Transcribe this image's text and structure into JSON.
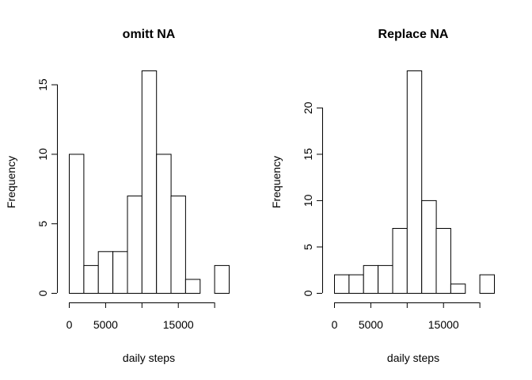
{
  "chart_data": [
    {
      "type": "bar",
      "title": "omitt NA",
      "xlabel": "daily steps",
      "ylabel": "Frequency",
      "bin_edges": [
        0,
        2000,
        4000,
        6000,
        8000,
        10000,
        12000,
        14000,
        16000,
        18000,
        20000,
        22000
      ],
      "values": [
        10,
        2,
        3,
        3,
        7,
        16,
        10,
        7,
        1,
        0,
        2
      ],
      "xlim": [
        0,
        22000
      ],
      "ylim": [
        0,
        16
      ],
      "x_ticks": [
        0,
        5000,
        10000,
        15000,
        20000
      ],
      "x_tick_labels": [
        "0",
        "5000",
        "",
        "15000",
        ""
      ],
      "y_ticks": [
        0,
        5,
        10,
        15
      ],
      "y_tick_labels": [
        "0",
        "5",
        "10",
        "15"
      ],
      "grid": false
    },
    {
      "type": "bar",
      "title": "Replace NA",
      "xlabel": "daily steps",
      "ylabel": "Frequency",
      "bin_edges": [
        0,
        2000,
        4000,
        6000,
        8000,
        10000,
        12000,
        14000,
        16000,
        18000,
        20000,
        22000
      ],
      "values": [
        2,
        2,
        3,
        3,
        7,
        24,
        10,
        7,
        1,
        0,
        2
      ],
      "xlim": [
        0,
        22000
      ],
      "ylim": [
        0,
        24
      ],
      "x_ticks": [
        0,
        5000,
        10000,
        15000,
        20000
      ],
      "x_tick_labels": [
        "0",
        "5000",
        "",
        "15000",
        ""
      ],
      "y_ticks": [
        0,
        5,
        10,
        15,
        20
      ],
      "y_tick_labels": [
        "0",
        "5",
        "10",
        "15",
        "20"
      ],
      "grid": false
    }
  ]
}
